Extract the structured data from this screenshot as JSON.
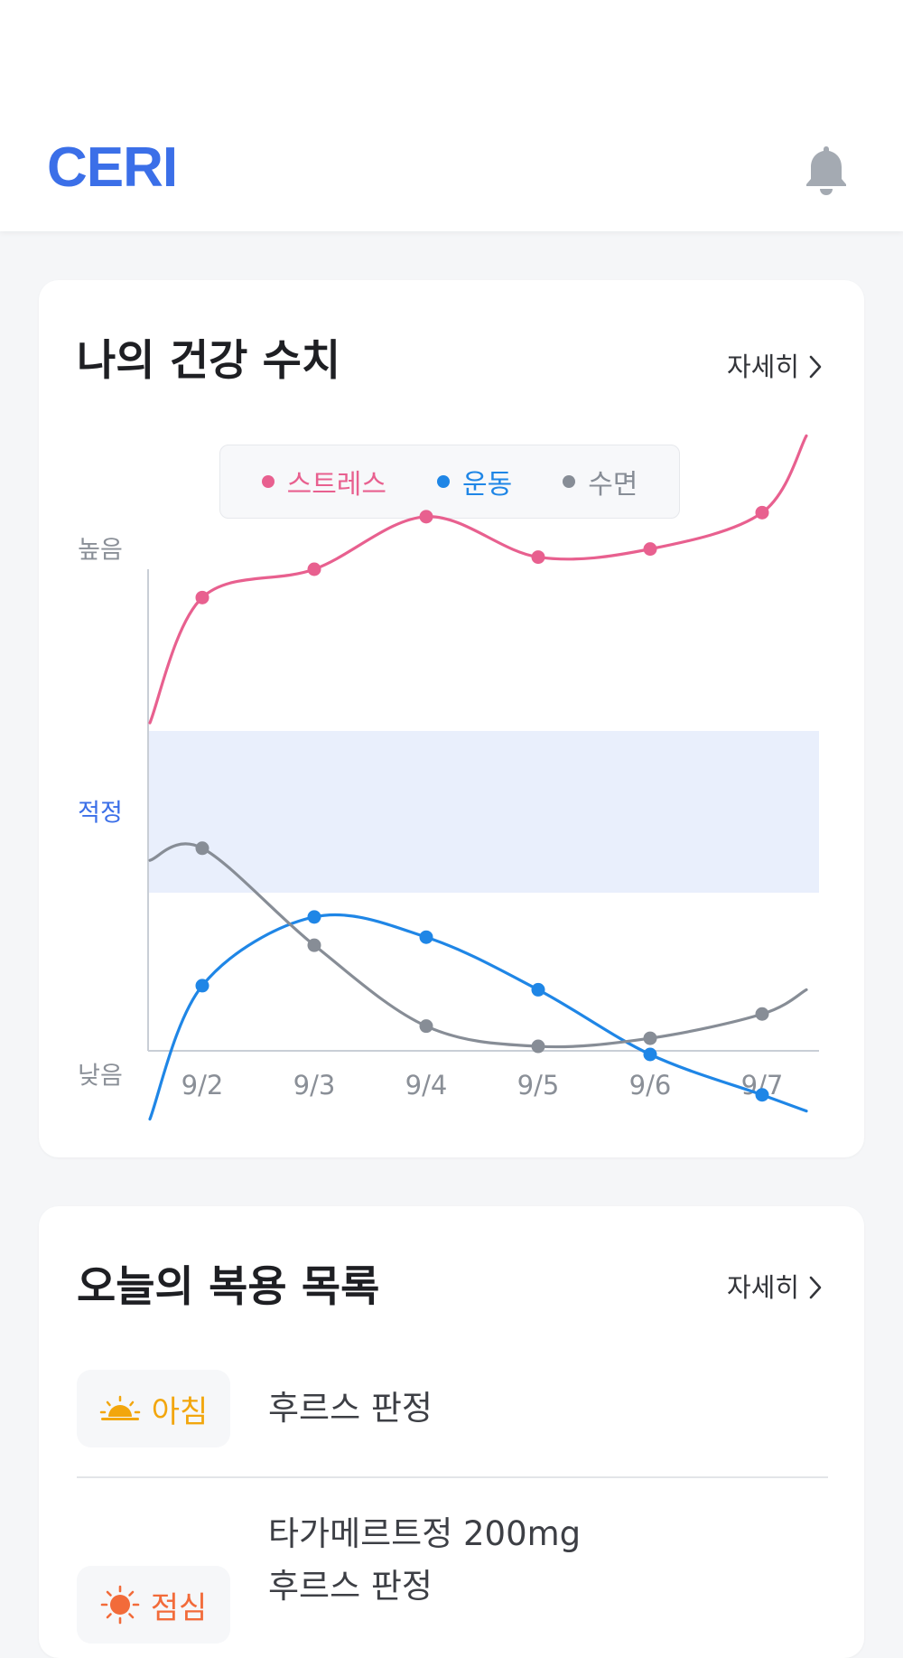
{
  "header": {
    "logo": "CERI"
  },
  "health": {
    "title": "나의 건강 수치",
    "more_label": "자세히",
    "legend": [
      {
        "label": "스트레스",
        "color": "#e8608f"
      },
      {
        "label": "운동",
        "color": "#1f86e6"
      },
      {
        "label": "수면",
        "color": "#878d96"
      }
    ]
  },
  "chart_data": {
    "type": "line",
    "x": [
      "9/2",
      "9/3",
      "9/4",
      "9/5",
      "9/6",
      "9/7"
    ],
    "y_categories": [
      "높음",
      "적정",
      "낮음"
    ],
    "band": {
      "label": "적정",
      "from": 0.3,
      "to": 0.7
    },
    "ylim": [
      -0.5,
      1.5
    ],
    "highlight_color": "#3b6fe8",
    "series": [
      {
        "name": "스트레스",
        "color": "#e8608f",
        "values": [
          1.03,
          1.1,
          1.23,
          1.13,
          1.15,
          1.24
        ]
      },
      {
        "name": "운동",
        "color": "#1f86e6",
        "values": [
          0.07,
          0.24,
          0.19,
          0.06,
          -0.1,
          -0.2
        ]
      },
      {
        "name": "수면",
        "color": "#878d96",
        "values": [
          0.41,
          0.17,
          -0.03,
          -0.08,
          -0.06,
          0.0
        ]
      }
    ]
  },
  "meds": {
    "title": "오늘의 복용 목록",
    "more_label": "자세히",
    "items": [
      {
        "time": "아침",
        "color": "#f2a60d",
        "icon": "sunrise-icon",
        "names": [
          "후르스 판정"
        ]
      },
      {
        "time": "점심",
        "color": "#f26b3a",
        "icon": "sun-icon",
        "names": [
          "타가메르트정 200mg",
          "후르스 판정"
        ]
      }
    ]
  }
}
